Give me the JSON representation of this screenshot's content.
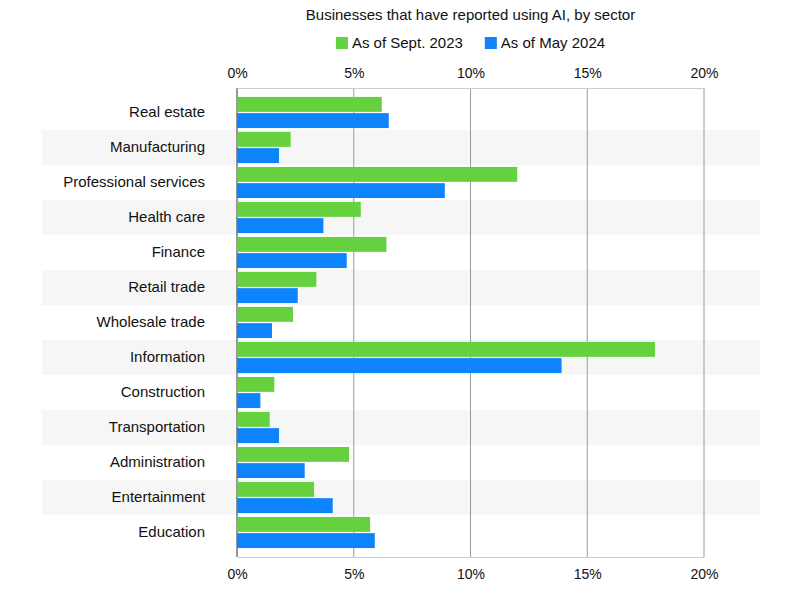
{
  "chart_data": {
    "type": "bar",
    "orientation": "horizontal",
    "title": "Businesses that have reported using AI, by sector",
    "categories": [
      "Real estate",
      "Manufacturing",
      "Professional services",
      "Health care",
      "Finance",
      "Retail trade",
      "Wholesale trade",
      "Information",
      "Construction",
      "Transportation",
      "Administration",
      "Entertainment",
      "Education"
    ],
    "series": [
      {
        "name": "As of Sept. 2023",
        "color": "#66d13e",
        "values": [
          6.2,
          2.3,
          12.0,
          5.3,
          6.4,
          3.4,
          2.4,
          17.9,
          1.6,
          1.4,
          4.8,
          3.3,
          5.7
        ]
      },
      {
        "name": "As of May 2024",
        "color": "#0d84fb",
        "values": [
          6.5,
          1.8,
          8.9,
          3.7,
          4.7,
          2.6,
          1.5,
          13.9,
          1.0,
          1.8,
          2.9,
          4.1,
          5.9
        ]
      }
    ],
    "xlim": [
      0,
      20
    ],
    "xticks": [
      {
        "value": 0,
        "label": "0%"
      },
      {
        "value": 5,
        "label": "5%"
      },
      {
        "value": 10,
        "label": "10%"
      },
      {
        "value": 15,
        "label": "15%"
      },
      {
        "value": 20,
        "label": "20%"
      }
    ],
    "grid": true,
    "legend": "top"
  }
}
